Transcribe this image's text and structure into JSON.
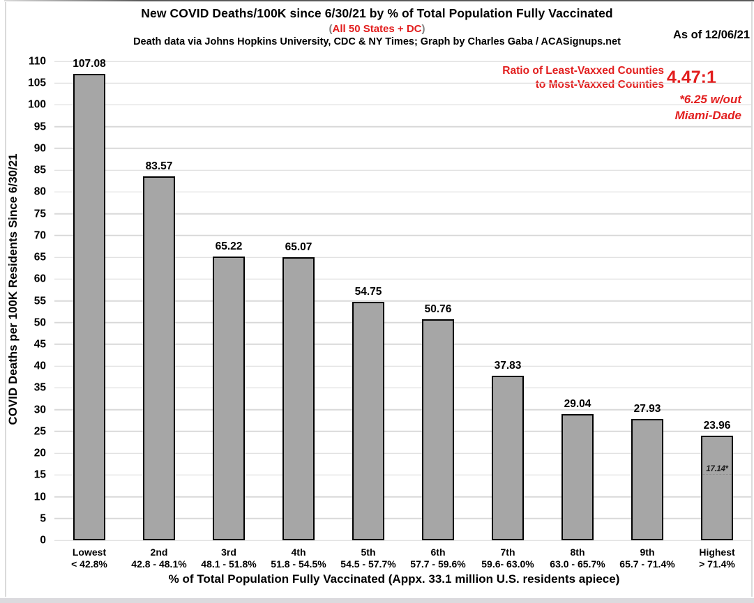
{
  "header": {
    "as_of": "As of 12/06/21",
    "subtitle_open_paren": "(",
    "subtitle_close_paren": ")"
  },
  "annotation": {
    "ratio_label_line1": "Ratio of Least-Vaxxed Counties",
    "ratio_label_line2": "to Most-Vaxxed Counties",
    "ratio_value": "4.47:1",
    "footnote_line1": "*6.25 w/out",
    "footnote_line2": "Miami-Dade"
  },
  "chart_data": {
    "type": "bar",
    "title": "New COVID Deaths/100K since 6/30/21 by % of Total Population Fully Vaccinated",
    "subtitle": "All 50 States + DC",
    "credit": "Death data via Johns Hopkins University, CDC & NY Times; Graph by Charles Gaba / ACASignups.net",
    "categories": [
      "Lowest",
      "2nd",
      "3rd",
      "4th",
      "5th",
      "6th",
      "7th",
      "8th",
      "9th",
      "Highest"
    ],
    "category_ranges": [
      "< 42.8%",
      "42.8 - 48.1%",
      "48.1 - 51.8%",
      "51.8 - 54.5%",
      "54.5 - 57.7%",
      "57.7 - 59.6%",
      "59.6- 63.0%",
      "63.0 - 65.7%",
      "65.7 - 71.4%",
      "> 71.4%"
    ],
    "values": [
      107.08,
      83.57,
      65.22,
      65.07,
      54.75,
      50.76,
      37.83,
      29.04,
      27.93,
      23.96
    ],
    "bar_annotation": {
      "bar_index": 9,
      "label": "17.14*",
      "value": 17.14
    },
    "xlabel": "% of Total Population Fully Vaccinated (Appx. 33.1 million U.S. residents apiece)",
    "ylabel": "COVID Deaths per 100K Residents Since 6/30/21",
    "ylim": [
      0,
      110
    ],
    "ytick_step": 5,
    "grid": "horizontal",
    "legend": "none",
    "colors": {
      "bar_fill": "#a6a6a6",
      "bar_border": "#000000",
      "accent_red": "#e21d1d",
      "gridline": "#d9d9d9",
      "paren_gray": "#7f7f7f"
    }
  }
}
